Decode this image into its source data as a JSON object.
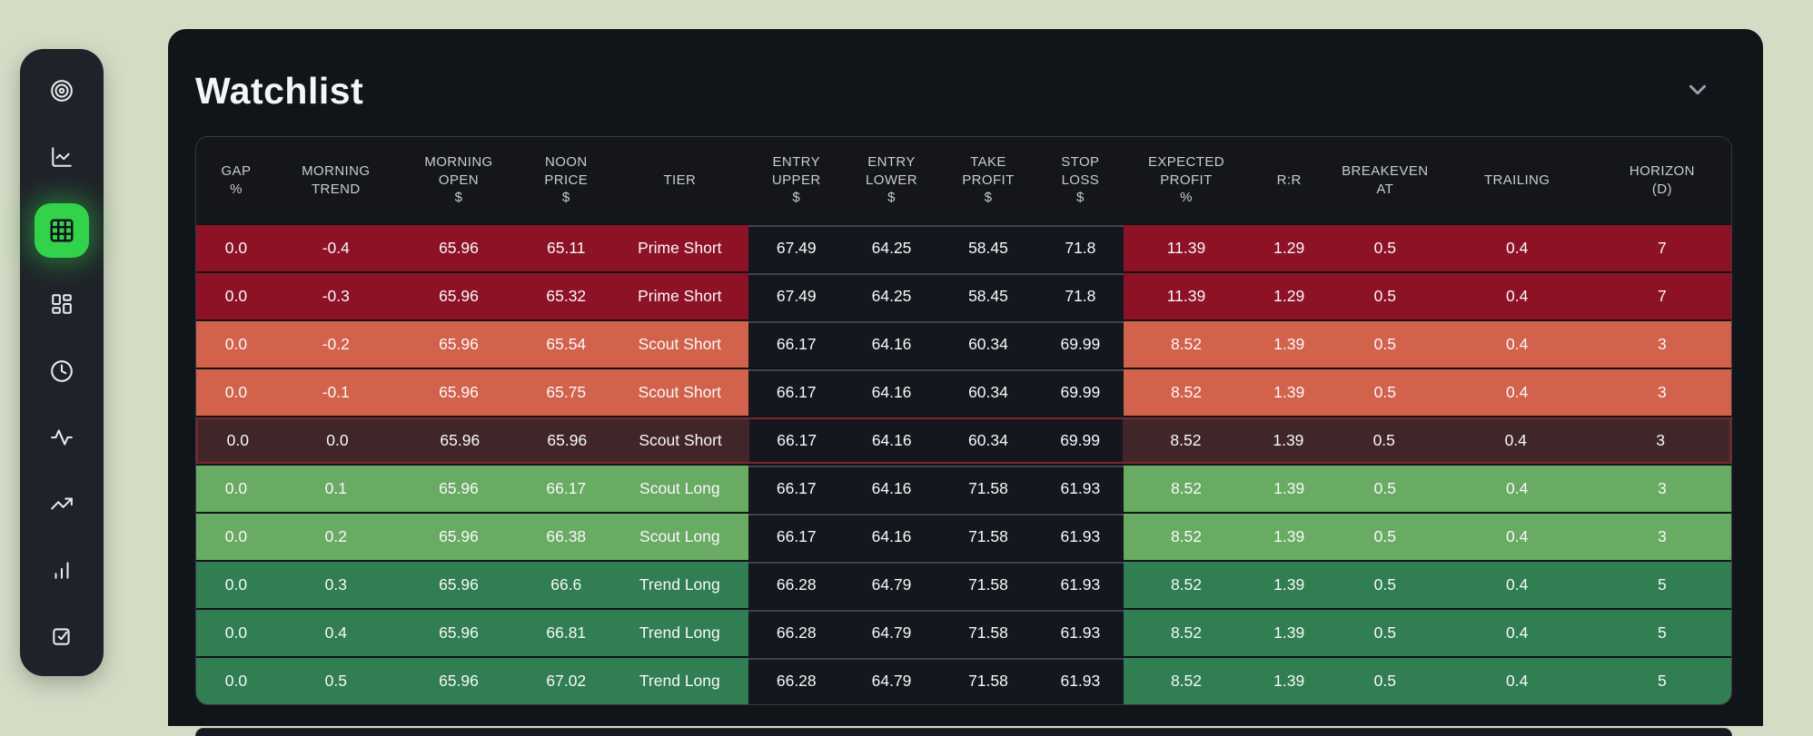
{
  "panel": {
    "title": "Watchlist"
  },
  "sidebar": {
    "items": [
      {
        "icon": "target-icon",
        "active": false
      },
      {
        "icon": "line-chart-icon",
        "active": false
      },
      {
        "icon": "table-grid-icon",
        "active": true
      },
      {
        "icon": "dashboard-icon",
        "active": false
      },
      {
        "icon": "clock-icon",
        "active": false
      },
      {
        "icon": "activity-icon",
        "active": false
      },
      {
        "icon": "trending-up-icon",
        "active": false
      },
      {
        "icon": "bar-chart-icon",
        "active": false
      },
      {
        "icon": "check-square-icon",
        "active": false
      }
    ]
  },
  "colors": {
    "bg_page": "#d4dcc6",
    "bg_panel": "#111419",
    "bg_sidebar": "#1f2329",
    "accent_green": "#32d24b",
    "header_text": "#c8cbd0",
    "cell_text": "#f7f8f9",
    "table_border": "#363a42",
    "mid_cell_bg": "#14171d",
    "mid_cell_line": "#3e434b",
    "row_prime_short": "#8e1226",
    "row_scout_short": "#d3624c",
    "row_current_bg": "#402629",
    "row_current_border": "#7d262c",
    "row_scout_long": "#6aab64",
    "row_trend_long": "#317e53"
  },
  "table": {
    "columns": [
      {
        "id": "gap-pct",
        "label_lines": [
          "GAP",
          "%"
        ]
      },
      {
        "id": "morning-trend",
        "label_lines": [
          "MORNING",
          "TREND"
        ]
      },
      {
        "id": "morning-open",
        "label_lines": [
          "MORNING",
          "OPEN",
          "$"
        ]
      },
      {
        "id": "noon-price",
        "label_lines": [
          "NOON",
          "PRICE",
          "$"
        ]
      },
      {
        "id": "tier",
        "label_lines": [
          "TIER"
        ]
      },
      {
        "id": "entry-upper",
        "label_lines": [
          "ENTRY",
          "UPPER",
          "$"
        ]
      },
      {
        "id": "entry-lower",
        "label_lines": [
          "ENTRY",
          "LOWER",
          "$"
        ]
      },
      {
        "id": "take-profit",
        "label_lines": [
          "TAKE",
          "PROFIT",
          "$"
        ]
      },
      {
        "id": "stop-loss",
        "label_lines": [
          "STOP",
          "LOSS",
          "$"
        ]
      },
      {
        "id": "expected-profit",
        "label_lines": [
          "EXPECTED",
          "PROFIT",
          "%"
        ]
      },
      {
        "id": "rr",
        "label_lines": [
          "R:R"
        ]
      },
      {
        "id": "breakeven-at",
        "label_lines": [
          "BREAKEVEN",
          "AT"
        ]
      },
      {
        "id": "trailing",
        "label_lines": [
          "TRAILING"
        ]
      },
      {
        "id": "horizon-d",
        "label_lines": [
          "HORIZON",
          "(D)"
        ]
      }
    ],
    "rows": [
      {
        "tone": "prime-short",
        "cells": [
          "0.0",
          "-0.4",
          "65.96",
          "65.11",
          "Prime Short",
          "67.49",
          "64.25",
          "58.45",
          "71.8",
          "11.39",
          "1.29",
          "0.5",
          "0.4",
          "7"
        ]
      },
      {
        "tone": "prime-short",
        "cells": [
          "0.0",
          "-0.3",
          "65.96",
          "65.32",
          "Prime Short",
          "67.49",
          "64.25",
          "58.45",
          "71.8",
          "11.39",
          "1.29",
          "0.5",
          "0.4",
          "7"
        ]
      },
      {
        "tone": "scout-short",
        "cells": [
          "0.0",
          "-0.2",
          "65.96",
          "65.54",
          "Scout Short",
          "66.17",
          "64.16",
          "60.34",
          "69.99",
          "8.52",
          "1.39",
          "0.5",
          "0.4",
          "3"
        ]
      },
      {
        "tone": "scout-short",
        "cells": [
          "0.0",
          "-0.1",
          "65.96",
          "65.75",
          "Scout Short",
          "66.17",
          "64.16",
          "60.34",
          "69.99",
          "8.52",
          "1.39",
          "0.5",
          "0.4",
          "3"
        ]
      },
      {
        "tone": "current",
        "cells": [
          "0.0",
          "0.0",
          "65.96",
          "65.96",
          "Scout Short",
          "66.17",
          "64.16",
          "60.34",
          "69.99",
          "8.52",
          "1.39",
          "0.5",
          "0.4",
          "3"
        ]
      },
      {
        "tone": "scout-long",
        "cells": [
          "0.0",
          "0.1",
          "65.96",
          "66.17",
          "Scout Long",
          "66.17",
          "64.16",
          "71.58",
          "61.93",
          "8.52",
          "1.39",
          "0.5",
          "0.4",
          "3"
        ]
      },
      {
        "tone": "scout-long",
        "cells": [
          "0.0",
          "0.2",
          "65.96",
          "66.38",
          "Scout Long",
          "66.17",
          "64.16",
          "71.58",
          "61.93",
          "8.52",
          "1.39",
          "0.5",
          "0.4",
          "3"
        ]
      },
      {
        "tone": "trend-long",
        "cells": [
          "0.0",
          "0.3",
          "65.96",
          "66.6",
          "Trend Long",
          "66.28",
          "64.79",
          "71.58",
          "61.93",
          "8.52",
          "1.39",
          "0.5",
          "0.4",
          "5"
        ]
      },
      {
        "tone": "trend-long",
        "cells": [
          "0.0",
          "0.4",
          "65.96",
          "66.81",
          "Trend Long",
          "66.28",
          "64.79",
          "71.58",
          "61.93",
          "8.52",
          "1.39",
          "0.5",
          "0.4",
          "5"
        ]
      },
      {
        "tone": "trend-long",
        "cells": [
          "0.0",
          "0.5",
          "65.96",
          "67.02",
          "Trend Long",
          "66.28",
          "64.79",
          "71.58",
          "61.93",
          "8.52",
          "1.39",
          "0.5",
          "0.4",
          "5"
        ]
      }
    ]
  }
}
